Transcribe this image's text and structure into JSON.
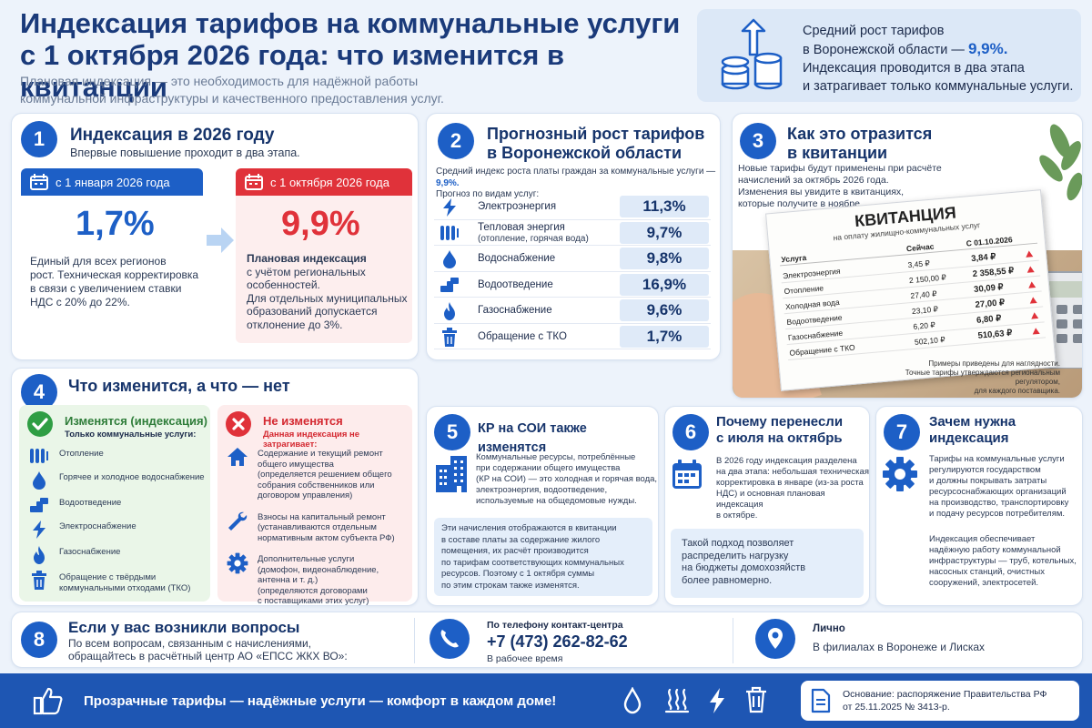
{
  "header": {
    "title_line1": "Индексация тарифов на коммунальные услуги",
    "title_line2": "с 1 октября 2026 года: что изменится в квитанции",
    "subtitle_line1": "Плановая индексация — это необходимость для надёжной работы",
    "subtitle_line2": "коммунальной инфраструктуры и качественного предоставления услуг.",
    "info_line1": "Средний рост тарифов",
    "info_line2": "в Воронежской области —",
    "info_value": "9,9%.",
    "info_line3": "Индексация проводится в два этапа",
    "info_line4": "и затрагивает только коммунальные услуги."
  },
  "s1": {
    "num": "1",
    "title": "Индексация в 2026 году",
    "subtitle": "Впервые повышение проходит в два этапа.",
    "stage1_date": "с 1 января 2026 года",
    "stage1_value": "1,7%",
    "stage1_text": [
      "Единый для всех регионов",
      "рост. Техническая корректировка",
      "в связи с увеличением ставки",
      "НДС с 20% до 22%."
    ],
    "stage2_date": "с 1 октября 2026 года",
    "stage2_value": "9,9%",
    "stage2_bold": [
      "Плановая индексация"
    ],
    "stage2_text": [
      "с учётом региональных",
      "особенностей.",
      "Для отдельных муниципальных",
      "образований допускается",
      "отклонение до 3%."
    ]
  },
  "s2": {
    "num": "2",
    "title_line1": "Прогнозный рост тарифов",
    "title_line2": "в Воронежской области",
    "intro_line1": "Средний индекс роста платы граждан за коммунальные услуги —",
    "intro_value": "9,9%.",
    "intro_line2": "Прогноз по видам услуг:",
    "rows": [
      {
        "icon": "bolt-icon",
        "label": "Электроэнергия",
        "sub": "",
        "value": "11,3%"
      },
      {
        "icon": "radiator-icon",
        "label": "Тепловая энергия",
        "sub": "(отопление, горячая вода)",
        "value": "9,7%"
      },
      {
        "icon": "drop-icon",
        "label": "Водоснабжение",
        "sub": "",
        "value": "9,8%"
      },
      {
        "icon": "pipe-icon",
        "label": "Водоотведение",
        "sub": "",
        "value": "16,9%"
      },
      {
        "icon": "flame-icon",
        "label": "Газоснабжение",
        "sub": "",
        "value": "9,6%"
      },
      {
        "icon": "trash-icon",
        "label": "Обращение с ТКО",
        "sub": "",
        "value": "1,7%"
      }
    ]
  },
  "s3": {
    "num": "3",
    "title_line1": "Как это отразится",
    "title_line2": "в квитанции",
    "text": [
      "Новые тарифы будут применены при расчёте",
      "начислений за октябрь 2026 года.",
      "Изменения вы увидите в квитанциях,",
      "которые получите в ноябре."
    ],
    "receipt_title": "КВИТАНЦИЯ",
    "receipt_sub": "на оплату жилищно-коммунальных услуг",
    "col_service": "Услуга",
    "col_now": "Сейчас",
    "col_new": "С 01.10.2026",
    "rows": [
      {
        "name": "Электроэнергия",
        "now": "3,45 ₽",
        "new": "3,84 ₽"
      },
      {
        "name": "Отопление",
        "now": "2 150,00 ₽",
        "new": "2 358,55 ₽"
      },
      {
        "name": "Холодная вода",
        "now": "27,40 ₽",
        "new": "30,09 ₽"
      },
      {
        "name": "Водоотведение",
        "now": "23,10 ₽",
        "new": "27,00 ₽"
      },
      {
        "name": "Газоснабжение",
        "now": "6,20 ₽",
        "new": "6,80 ₽"
      },
      {
        "name": "Обращение с ТКО",
        "now": "502,10 ₽",
        "new": "510,63 ₽"
      }
    ],
    "note_line1": "Примеры приведены для наглядности.",
    "note_line2": "Точные тарифы утверждаются региональным регулятором,",
    "note_line3": "для каждого поставщика."
  },
  "s4": {
    "num": "4",
    "title": "Что изменится, а что — нет",
    "yes_title": "Изменятся (индексация)",
    "yes_sub": "Только коммунальные услуги:",
    "yes_items": [
      {
        "icon": "radiator-icon",
        "lines": [
          "Отопление"
        ]
      },
      {
        "icon": "drop-icon",
        "lines": [
          "Горячее и холодное водоснабжение"
        ]
      },
      {
        "icon": "pipe-icon",
        "lines": [
          "Водоотведение"
        ]
      },
      {
        "icon": "bolt-icon",
        "lines": [
          "Электроснабжение"
        ]
      },
      {
        "icon": "flame-icon",
        "lines": [
          "Газоснабжение"
        ]
      },
      {
        "icon": "trash-icon",
        "lines": [
          "Обращение с твёрдыми",
          "коммунальными отходами (ТКО)"
        ]
      }
    ],
    "no_title": "Не изменятся",
    "no_sub": "Данная индексация не затрагивает:",
    "no_items": [
      {
        "icon": "house-icon",
        "lines": [
          "Содержание и текущий ремонт",
          "общего имущества",
          "(определяется решением общего",
          "собрания собственников или",
          "договором управления)"
        ]
      },
      {
        "icon": "wrench-icon",
        "lines": [
          "Взносы на капитальный ремонт",
          "(устанавливаются отдельным",
          "нормативным актом субъекта РФ)"
        ]
      },
      {
        "icon": "gear-icon",
        "lines": [
          "Дополнительные услуги",
          "(домофон, видеонаблюдение,",
          "антенна и т. д.)",
          "(определяются договорами",
          "с поставщиками этих услуг)"
        ]
      }
    ]
  },
  "s5": {
    "num": "5",
    "title": "КР на СОИ также изменятся",
    "text": [
      "Коммунальные ресурсы, потреблённые",
      "при содержании общего имущества",
      "(КР на СОИ) — это холодная и горячая вода,",
      "электроэнергия, водоотведение,",
      "используемые на общедомовые нужды."
    ],
    "box": [
      "Эти начисления отображаются в квитанции",
      "в составе платы за содержание жилого",
      "помещения, их расчёт производится",
      "по тарифам соответствующих коммунальных",
      "ресурсов. Поэтому с 1 октября суммы",
      "по этим строкам также изменятся."
    ]
  },
  "s6": {
    "num": "6",
    "title_line1": "Почему перенесли",
    "title_line2": "с июля на октябрь",
    "text": [
      "В 2026 году индексация разделена",
      "на два этапа: небольшая техническая",
      "корректировка в январе (из-за роста",
      "НДС) и основная плановая индексация",
      "в октябре."
    ],
    "box": [
      "Такой подход позволяет",
      "распределить нагрузку",
      "на бюджеты домохозяйств",
      "более равномерно."
    ]
  },
  "s7": {
    "num": "7",
    "title_line1": "Зачем нужна",
    "title_line2": "индексация",
    "text1": [
      "Тарифы на коммунальные услуги",
      "регулируются государством",
      "и должны покрывать затраты",
      "ресурсоснабжающих организаций",
      "на производство, транспортировку",
      "и подачу ресурсов потребителям."
    ],
    "text2": [
      "Индексация обеспечивает",
      "надёжную работу коммунальной",
      "инфраструктуры — труб, котельных,",
      "насосных станций, очистных",
      "сооружений, электросетей."
    ]
  },
  "s8": {
    "num": "8",
    "title": "Если у вас возникли вопросы",
    "text": [
      "По всем вопросам, связанным с начислениями,",
      "обращайтесь в расчётный центр АО «ЕПСС ЖКХ ВО»:"
    ],
    "phone_label": "По телефону контакт-центра",
    "phone": "+7 (473) 262-82-62",
    "phone_note": "В рабочее время",
    "person_label": "Лично",
    "person_text": "В филиалах в Воронеже и Лисках"
  },
  "footer": {
    "slogan": "Прозрачные тарифы — надёжные услуги — комфорт в каждом доме!",
    "basis_line1": "Основание: распоряжение Правительства РФ",
    "basis_line2": "от 25.11.2025 № 3413-р."
  },
  "colors": {
    "primary": "#1d5fc6",
    "dark": "#16346b",
    "red": "#e0323a",
    "green": "#2f9e44",
    "footer": "#1e56b3"
  }
}
